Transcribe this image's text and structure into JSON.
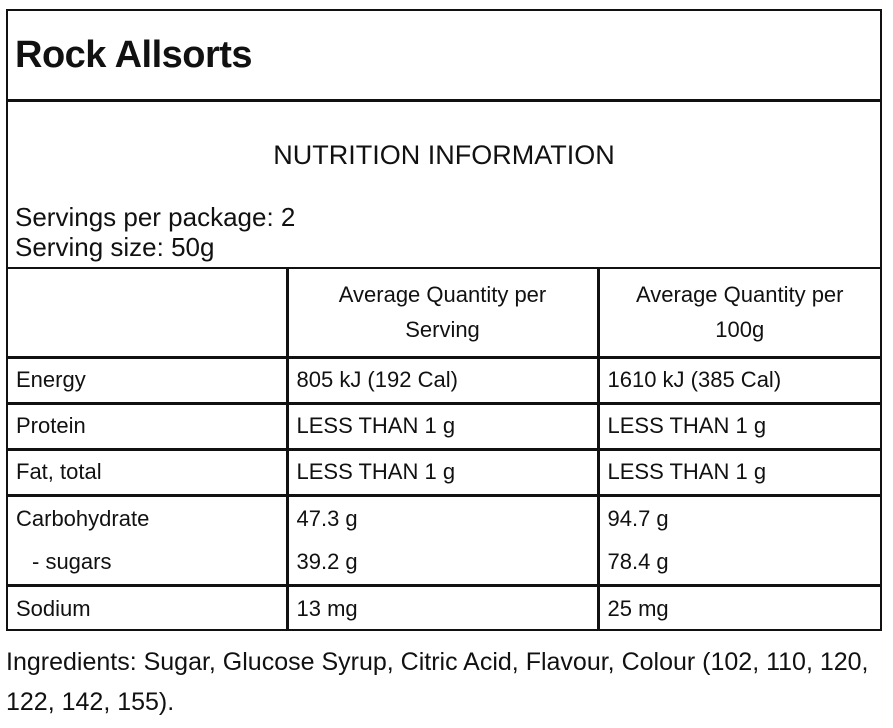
{
  "product": {
    "title": "Rock Allsorts"
  },
  "info": {
    "heading": "NUTRITION INFORMATION",
    "servings_per_package": "Servings per package: 2",
    "serving_size": "Serving size: 50g"
  },
  "table": {
    "headers": [
      "",
      "Average Quantity per Serving",
      "Average Quantity per 100g"
    ],
    "rows": [
      {
        "name": "Energy",
        "per_serving": "805 kJ (192 Cal)",
        "per_100g": "1610 kJ (385 Cal)"
      },
      {
        "name": "Protein",
        "per_serving": "LESS THAN 1 g",
        "per_100g": "LESS THAN 1 g"
      },
      {
        "name": "Fat, total",
        "per_serving": "LESS THAN 1 g",
        "per_100g": "LESS THAN 1 g"
      },
      {
        "name": "Carbohydrate",
        "per_serving": "47.3 g",
        "per_100g": "94.7 g"
      },
      {
        "name": "- sugars",
        "per_serving": "39.2 g",
        "per_100g": "78.4 g"
      },
      {
        "name": "Sodium",
        "per_serving": "13 mg",
        "per_100g": "25 mg"
      }
    ]
  },
  "ingredients": "Ingredients: Sugar, Glucose Syrup, Citric Acid, Flavour, Colour (102, 110, 120, 122, 142, 155)."
}
